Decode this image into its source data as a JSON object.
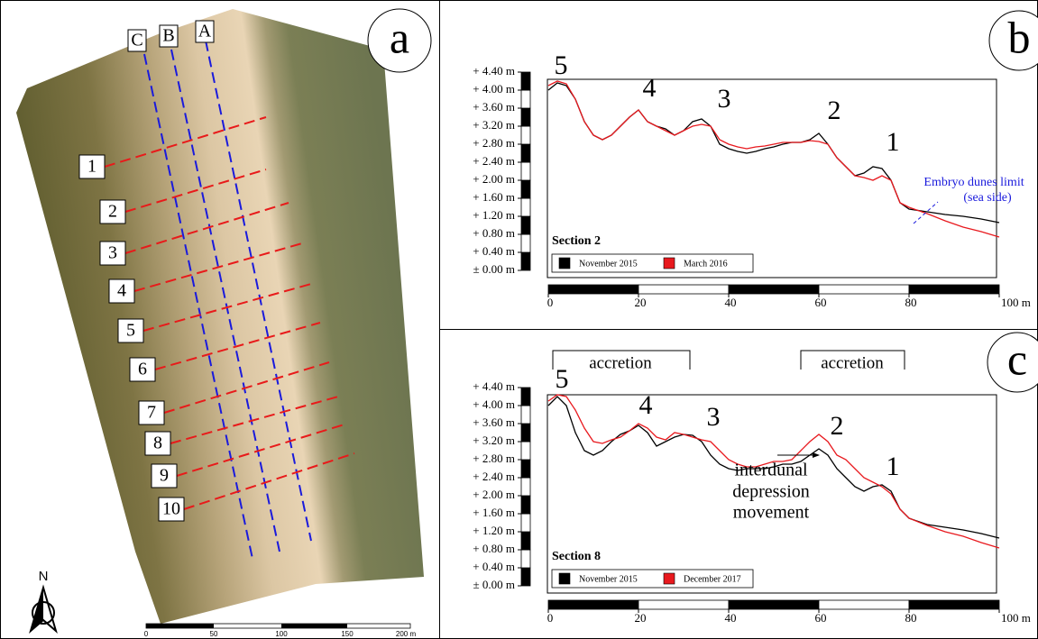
{
  "map": {
    "label": "a",
    "transects": [
      "C",
      "B",
      "A"
    ],
    "sections": [
      "1",
      "2",
      "3",
      "4",
      "5",
      "6",
      "7",
      "8",
      "9",
      "10"
    ],
    "scale": [
      "0",
      "50",
      "100",
      "150",
      "200 m"
    ],
    "north": "N"
  },
  "chart_data": [
    {
      "type": "line",
      "panel_label": "b",
      "title": "Section 2",
      "x": [
        0,
        2,
        4,
        6,
        8,
        10,
        12,
        14,
        16,
        18,
        20,
        22,
        24,
        26,
        28,
        30,
        32,
        34,
        36,
        38,
        40,
        42,
        44,
        46,
        48,
        50,
        52,
        54,
        56,
        58,
        60,
        62,
        64,
        66,
        68,
        70,
        72,
        74,
        76,
        78,
        80,
        84,
        88,
        92,
        96,
        100
      ],
      "series": [
        {
          "name": "November 2015",
          "color": "#000000",
          "values": [
            4.0,
            4.16,
            4.1,
            3.8,
            3.3,
            3.0,
            2.9,
            3.0,
            3.2,
            3.4,
            3.56,
            3.3,
            3.2,
            3.14,
            3.0,
            3.1,
            3.3,
            3.36,
            3.2,
            2.8,
            2.7,
            2.64,
            2.6,
            2.64,
            2.7,
            2.74,
            2.8,
            2.84,
            2.84,
            2.9,
            3.04,
            2.8,
            2.5,
            2.3,
            2.1,
            2.16,
            2.3,
            2.26,
            2.0,
            1.5,
            1.36,
            1.3,
            1.24,
            1.2,
            1.14,
            1.06
          ]
        },
        {
          "name": "March 2016",
          "color": "#e8191e",
          "values": [
            4.1,
            4.2,
            4.14,
            3.8,
            3.3,
            3.0,
            2.9,
            3.0,
            3.2,
            3.4,
            3.56,
            3.3,
            3.2,
            3.1,
            3.0,
            3.1,
            3.2,
            3.24,
            3.2,
            2.9,
            2.8,
            2.74,
            2.7,
            2.74,
            2.76,
            2.8,
            2.84,
            2.84,
            2.84,
            2.88,
            2.86,
            2.8,
            2.5,
            2.3,
            2.1,
            2.06,
            2.0,
            2.1,
            2.0,
            1.5,
            1.4,
            1.26,
            1.1,
            0.96,
            0.86,
            0.74
          ]
        }
      ],
      "xlim": [
        0,
        100
      ],
      "xticks": [
        0,
        20,
        40,
        60,
        80,
        {
          "value": 100,
          "label": "100 m"
        }
      ],
      "ylim": [
        0,
        4.4
      ],
      "yticks": [
        {
          "value": 0,
          "label": "± 0.00 m"
        },
        {
          "value": 0.4,
          "label": "+ 0.40 m"
        },
        {
          "value": 0.8,
          "label": "+ 0.80 m"
        },
        {
          "value": 1.2,
          "label": "+ 1.20 m"
        },
        {
          "value": 1.6,
          "label": "+ 1.60 m"
        },
        {
          "value": 2.0,
          "label": "+ 2.00 m"
        },
        {
          "value": 2.4,
          "label": "+ 2.40 m"
        },
        {
          "value": 2.8,
          "label": "+ 2.80 m"
        },
        {
          "value": 3.2,
          "label": "+ 3.20 m"
        },
        {
          "value": 3.6,
          "label": "+ 3.60 m"
        },
        {
          "value": 4.0,
          "label": "+ 4.00 m"
        },
        {
          "value": 4.4,
          "label": "+ 4.40 m"
        }
      ],
      "peak_labels": [
        "5",
        "4",
        "3",
        "2",
        "1"
      ],
      "annotations": [
        "Embryo dunes limit",
        "(sea side)"
      ]
    },
    {
      "type": "line",
      "panel_label": "c",
      "title": "Section 8",
      "x": [
        0,
        2,
        4,
        6,
        8,
        10,
        12,
        14,
        16,
        18,
        20,
        22,
        24,
        26,
        28,
        30,
        32,
        34,
        36,
        38,
        40,
        42,
        44,
        46,
        48,
        50,
        52,
        54,
        56,
        58,
        60,
        62,
        64,
        66,
        68,
        70,
        72,
        74,
        76,
        78,
        80,
        84,
        88,
        92,
        96,
        100
      ],
      "series": [
        {
          "name": "November 2015",
          "color": "#000000",
          "values": [
            4.0,
            4.2,
            4.0,
            3.4,
            3.0,
            2.9,
            3.0,
            3.2,
            3.36,
            3.44,
            3.56,
            3.4,
            3.1,
            3.2,
            3.3,
            3.36,
            3.34,
            3.2,
            2.9,
            2.7,
            2.6,
            2.56,
            2.6,
            2.6,
            2.6,
            2.64,
            2.7,
            2.7,
            2.76,
            2.9,
            3.04,
            2.9,
            2.6,
            2.4,
            2.2,
            2.1,
            2.2,
            2.24,
            2.1,
            1.7,
            1.5,
            1.36,
            1.3,
            1.24,
            1.16,
            1.06
          ]
        },
        {
          "name": "December 2017",
          "color": "#e8191e",
          "values": [
            4.1,
            4.24,
            4.2,
            3.9,
            3.5,
            3.2,
            3.16,
            3.24,
            3.3,
            3.44,
            3.6,
            3.5,
            3.3,
            3.24,
            3.4,
            3.36,
            3.3,
            3.24,
            3.2,
            3.0,
            2.8,
            2.7,
            2.64,
            2.64,
            2.7,
            2.76,
            2.76,
            2.8,
            3.0,
            3.2,
            3.36,
            3.2,
            2.9,
            2.8,
            2.6,
            2.4,
            2.3,
            2.2,
            2.04,
            1.7,
            1.5,
            1.34,
            1.2,
            1.1,
            0.96,
            0.84
          ]
        }
      ],
      "xlim": [
        0,
        100
      ],
      "xticks": [
        0,
        20,
        40,
        60,
        80,
        {
          "value": 100,
          "label": "100 m"
        }
      ],
      "ylim": [
        0,
        4.4
      ],
      "yticks": [
        {
          "value": 0,
          "label": "± 0.00 m"
        },
        {
          "value": 0.4,
          "label": "+ 0.40 m"
        },
        {
          "value": 0.8,
          "label": "+ 0.80 m"
        },
        {
          "value": 1.2,
          "label": "+ 1.20 m"
        },
        {
          "value": 1.6,
          "label": "+ 1.60 m"
        },
        {
          "value": 2.0,
          "label": "+ 2.00 m"
        },
        {
          "value": 2.4,
          "label": "+ 2.40 m"
        },
        {
          "value": 2.8,
          "label": "+ 2.80 m"
        },
        {
          "value": 3.2,
          "label": "+ 3.20 m"
        },
        {
          "value": 3.6,
          "label": "+ 3.60 m"
        },
        {
          "value": 4.0,
          "label": "+ 4.00 m"
        },
        {
          "value": 4.4,
          "label": "+ 4.40 m"
        }
      ],
      "peak_labels": [
        "5",
        "4",
        "3",
        "2",
        "1"
      ],
      "annotations": [
        "accretion",
        "accretion",
        "interdunal",
        "depression",
        "movement"
      ]
    }
  ]
}
